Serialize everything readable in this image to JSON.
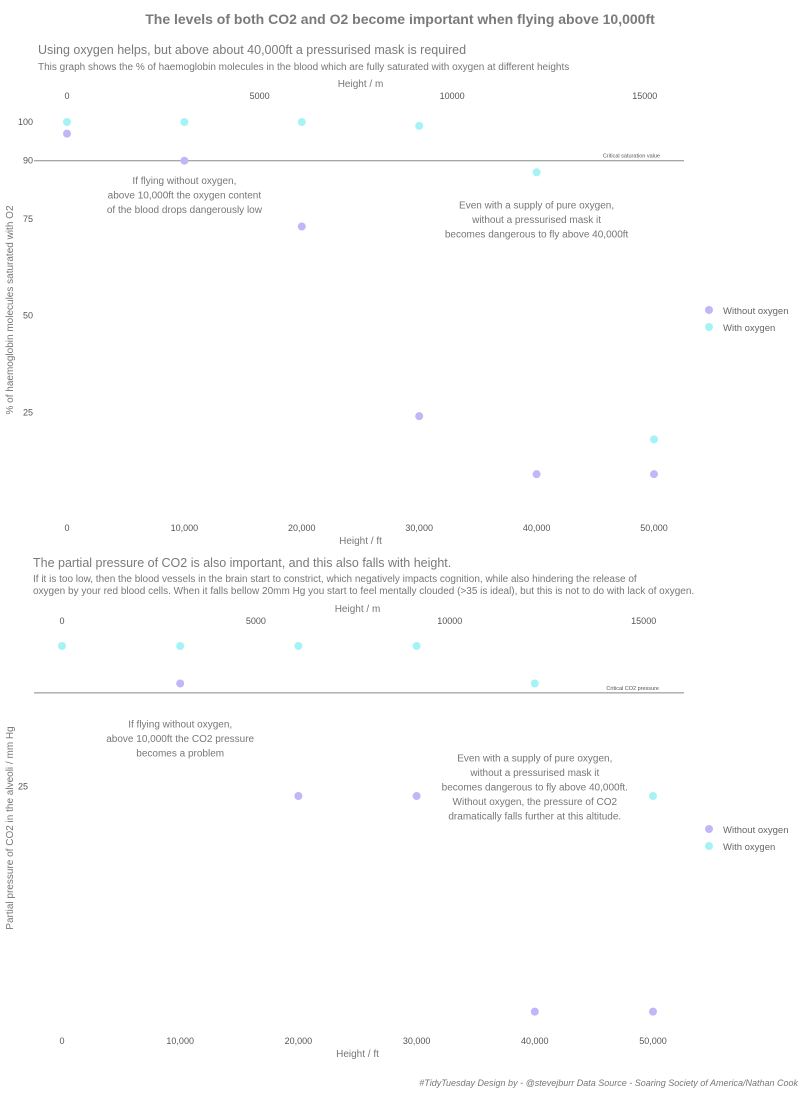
{
  "title": "The levels of both CO2 and O2 become important when flying above 10,000ft",
  "colors": {
    "without_oxygen": "#c2b6f7",
    "with_oxygen": "#a6f3f7",
    "text": "#777777",
    "title": "#7a7a7a",
    "refline": "#888888"
  },
  "legend": {
    "without_label": "Without oxygen",
    "with_label": "With oxygen"
  },
  "footer": "#TidyTuesday Design by - @stevejburr Data Source - Soaring Society of America/Nathan Cook",
  "chart_data": [
    {
      "type": "scatter",
      "id": "o2",
      "subtitle": "Using oxygen helps, but above about 40,000ft a pressurised mask is required",
      "caption_lines": [
        "This graph shows the % of haemoglobin molecules in the blood which are fully saturated with oxygen at different heights"
      ],
      "xlabel": "Height / ft",
      "x2label": "Height / m",
      "ylabel": "% of haemoglobin molecules saturated with O2",
      "xlim": [
        0,
        50000
      ],
      "ylim": [
        0,
        100
      ],
      "x_ticks": [
        0,
        10000,
        20000,
        30000,
        40000,
        50000
      ],
      "x_tick_labels": [
        "0",
        "10,000",
        "20,000",
        "30,000",
        "40,000",
        "50,000"
      ],
      "x2_ticks": [
        0,
        5000,
        10000,
        15000
      ],
      "x2_tick_labels": [
        "0",
        "5000",
        "10000",
        "15000"
      ],
      "y_ticks": [
        25,
        50,
        75,
        90,
        100
      ],
      "y_tick_labels": [
        "25",
        "50",
        "75",
        "90",
        "100"
      ],
      "hline": {
        "y": 90,
        "label": "Critical saturation value"
      },
      "series": [
        {
          "name": "Without oxygen",
          "color_key": "without_oxygen",
          "points": [
            [
              0,
              97
            ],
            [
              10000,
              90
            ],
            [
              20000,
              73
            ],
            [
              30000,
              24
            ],
            [
              40000,
              9
            ],
            [
              50000,
              9
            ]
          ]
        },
        {
          "name": "With oxygen",
          "color_key": "with_oxygen",
          "points": [
            [
              0,
              100
            ],
            [
              10000,
              100
            ],
            [
              20000,
              100
            ],
            [
              30000,
              99
            ],
            [
              40000,
              87
            ],
            [
              50000,
              18
            ]
          ]
        }
      ],
      "annotations": [
        {
          "x": 10000,
          "y": 84,
          "lines": [
            "If flying without oxygen,",
            "above 10,000ft the oxygen content",
            "of the blood drops dangerously low"
          ]
        },
        {
          "x": 40000,
          "y": 77.6,
          "lines": [
            "Even with a supply of pure oxygen,",
            "without a pressurised mask it",
            "becomes dangerous to fly above 40,000ft"
          ]
        }
      ]
    },
    {
      "type": "scatter",
      "id": "co2",
      "subtitle": "The partial pressure of CO2 is also important, and this also falls with height.",
      "caption_lines": [
        "If it is too low, then the blood vessels in the brain start to constrict, which negatively impacts cognition, while also hindering the release of",
        "oxygen by your red blood cells. When it falls bellow 20mm Hg you start to feel mentally clouded (>35 is ideal), but this is not to do with lack of oxygen."
      ],
      "xlabel": "Height / ft",
      "x2label": "Height / m",
      "ylabel": "Partial pressure of CO2 in the alveoli / mm Hg",
      "xlim": [
        0,
        50000
      ],
      "ylim": [
        0,
        40
      ],
      "x_ticks": [
        0,
        10000,
        20000,
        30000,
        40000,
        50000
      ],
      "x_tick_labels": [
        "0",
        "10,000",
        "20,000",
        "30,000",
        "40,000",
        "50,000"
      ],
      "x2_ticks": [
        0,
        5000,
        10000,
        15000
      ],
      "x2_tick_labels": [
        "0",
        "5000",
        "10000",
        "15000"
      ],
      "y_ticks": [
        25
      ],
      "y_tick_labels": [
        "25"
      ],
      "hline": {
        "y": 35,
        "label": "Critical CO2 pressure"
      },
      "series": [
        {
          "name": "Without oxygen",
          "color_key": "without_oxygen",
          "points": [
            [
              10000,
              36
            ],
            [
              20000,
              24
            ],
            [
              30000,
              24
            ],
            [
              40000,
              1
            ],
            [
              50000,
              1
            ]
          ]
        },
        {
          "name": "With oxygen",
          "color_key": "with_oxygen",
          "points": [
            [
              0,
              40
            ],
            [
              10000,
              40
            ],
            [
              20000,
              40
            ],
            [
              30000,
              40
            ],
            [
              40000,
              36
            ],
            [
              50000,
              24
            ]
          ]
        }
      ],
      "annotations": [
        {
          "x": 10000,
          "y": 31.3,
          "lines": [
            "If flying without oxygen,",
            "above 10,000ft the CO2 pressure",
            "becomes a problem"
          ]
        },
        {
          "x": 40000,
          "y": 27.7,
          "lines": [
            "Even with a supply of pure oxygen,",
            "without a pressurised mask it",
            "becomes dangerous to fly above 40,000ft.",
            "Without oxygen, the pressure of CO2",
            "dramatically falls further at this altitude."
          ]
        }
      ]
    }
  ]
}
